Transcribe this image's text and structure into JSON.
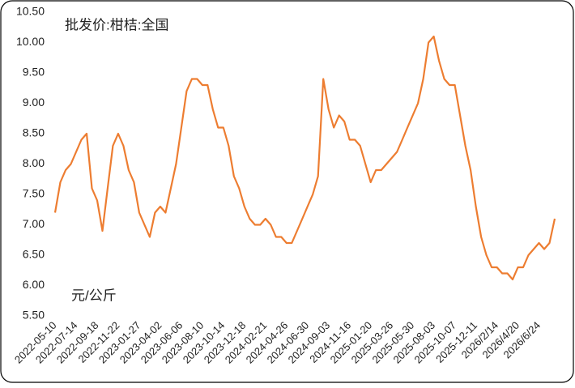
{
  "chart_data": {
    "type": "line",
    "title": "批发价:柑桔:全国",
    "y_label": "元/公斤",
    "ylim": [
      5.5,
      10.5
    ],
    "yticks": [
      {
        "value": 5.5,
        "label": "5.50"
      },
      {
        "value": 6,
        "label": "6.00"
      },
      {
        "value": 6.5,
        "label": "6.50"
      },
      {
        "value": 7,
        "label": "7.00"
      },
      {
        "value": 7.5,
        "label": "7.50"
      },
      {
        "value": 8,
        "label": "8.00"
      },
      {
        "value": 8.5,
        "label": "8.50"
      },
      {
        "value": 9,
        "label": "9.00"
      },
      {
        "value": 9.5,
        "label": "9.50"
      },
      {
        "value": 10,
        "label": "10.00"
      },
      {
        "value": 10.5,
        "label": "10.50"
      }
    ],
    "categories": [
      "2022-05-10",
      null,
      null,
      null,
      "2022-07-14",
      null,
      null,
      null,
      "2022-09-18",
      null,
      null,
      null,
      "2022-11-22",
      null,
      null,
      null,
      "2023-01-27",
      null,
      null,
      null,
      "2023-04-02",
      null,
      null,
      null,
      "2023-06-06",
      null,
      null,
      null,
      "2023-08-10",
      null,
      null,
      null,
      "2023-10-14",
      null,
      null,
      null,
      "2023-12-18",
      null,
      null,
      null,
      "2024-02-21",
      null,
      null,
      null,
      "2024-04-26",
      null,
      null,
      null,
      "2024-06-30",
      null,
      null,
      null,
      "2024-09-03",
      null,
      null,
      null,
      "2024-11-16",
      null,
      null,
      null,
      "2025-01-20",
      null,
      null,
      null,
      "2025-03-26",
      null,
      null,
      null,
      "2025-05-30",
      null,
      null,
      null,
      "2025-08-03",
      null,
      null,
      null,
      "2025-10-07",
      null,
      null,
      null,
      "2025-12-11",
      null,
      null,
      null,
      "2026/2/14",
      null,
      null,
      null,
      "2026/4/20",
      null,
      null,
      null,
      "2026/6/24",
      null,
      null,
      null
    ],
    "series": [
      {
        "name": "批发价:柑桔:全国",
        "color": "#ED7D31",
        "values": [
          7.2,
          7.7,
          7.9,
          8.0,
          8.2,
          8.4,
          8.5,
          7.6,
          7.4,
          6.9,
          7.6,
          8.3,
          8.5,
          8.3,
          7.9,
          7.7,
          7.2,
          7.0,
          6.8,
          7.2,
          7.3,
          7.2,
          7.6,
          8.0,
          8.6,
          9.2,
          9.4,
          9.4,
          9.3,
          9.3,
          8.9,
          8.6,
          8.6,
          8.3,
          7.8,
          7.6,
          7.3,
          7.1,
          7.0,
          7.0,
          7.1,
          7.0,
          6.8,
          6.8,
          6.7,
          6.7,
          6.9,
          7.1,
          7.3,
          7.5,
          7.8,
          9.4,
          8.9,
          8.6,
          8.8,
          8.7,
          8.4,
          8.4,
          8.3,
          8.0,
          7.7,
          7.9,
          7.9,
          8.0,
          8.1,
          8.2,
          8.4,
          8.6,
          8.8,
          9.0,
          9.4,
          10.0,
          10.1,
          9.7,
          9.4,
          9.3,
          9.3,
          8.8,
          8.3,
          7.9,
          7.3,
          6.8,
          6.5,
          6.3,
          6.3,
          6.2,
          6.2,
          6.1,
          6.3,
          6.3,
          6.5,
          6.6,
          6.7,
          6.6,
          6.7,
          7.1
        ]
      }
    ]
  }
}
